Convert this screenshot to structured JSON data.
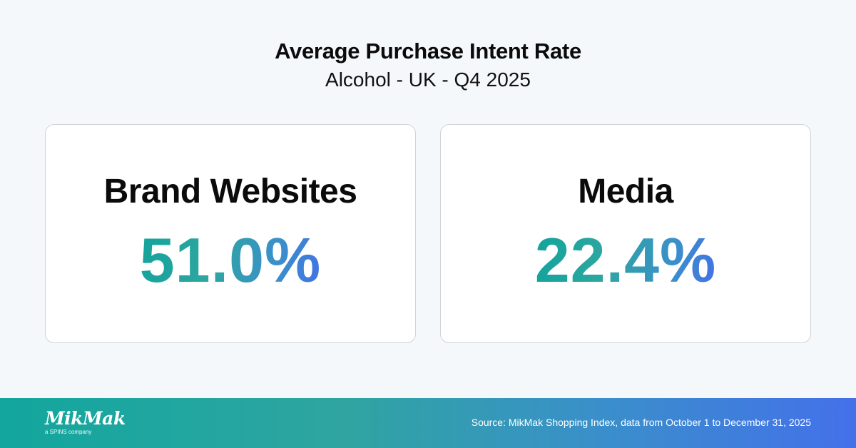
{
  "header": {
    "title": "Average Purchase Intent Rate",
    "subtitle": "Alcohol - UK - Q4 2025"
  },
  "cards": [
    {
      "label": "Brand Websites",
      "value": "51.0%"
    },
    {
      "label": "Media",
      "value": "22.4%"
    }
  ],
  "footer": {
    "logo": "MikMak",
    "logo_tagline": "a SPINS company",
    "source": "Source: MikMak Shopping Index, data from October 1 to December 31, 2025"
  },
  "colors": {
    "background": "#f5f8fb",
    "gradient_start": "#12a39c",
    "gradient_end": "#4371e6",
    "card_border": "#cfd3d8"
  }
}
